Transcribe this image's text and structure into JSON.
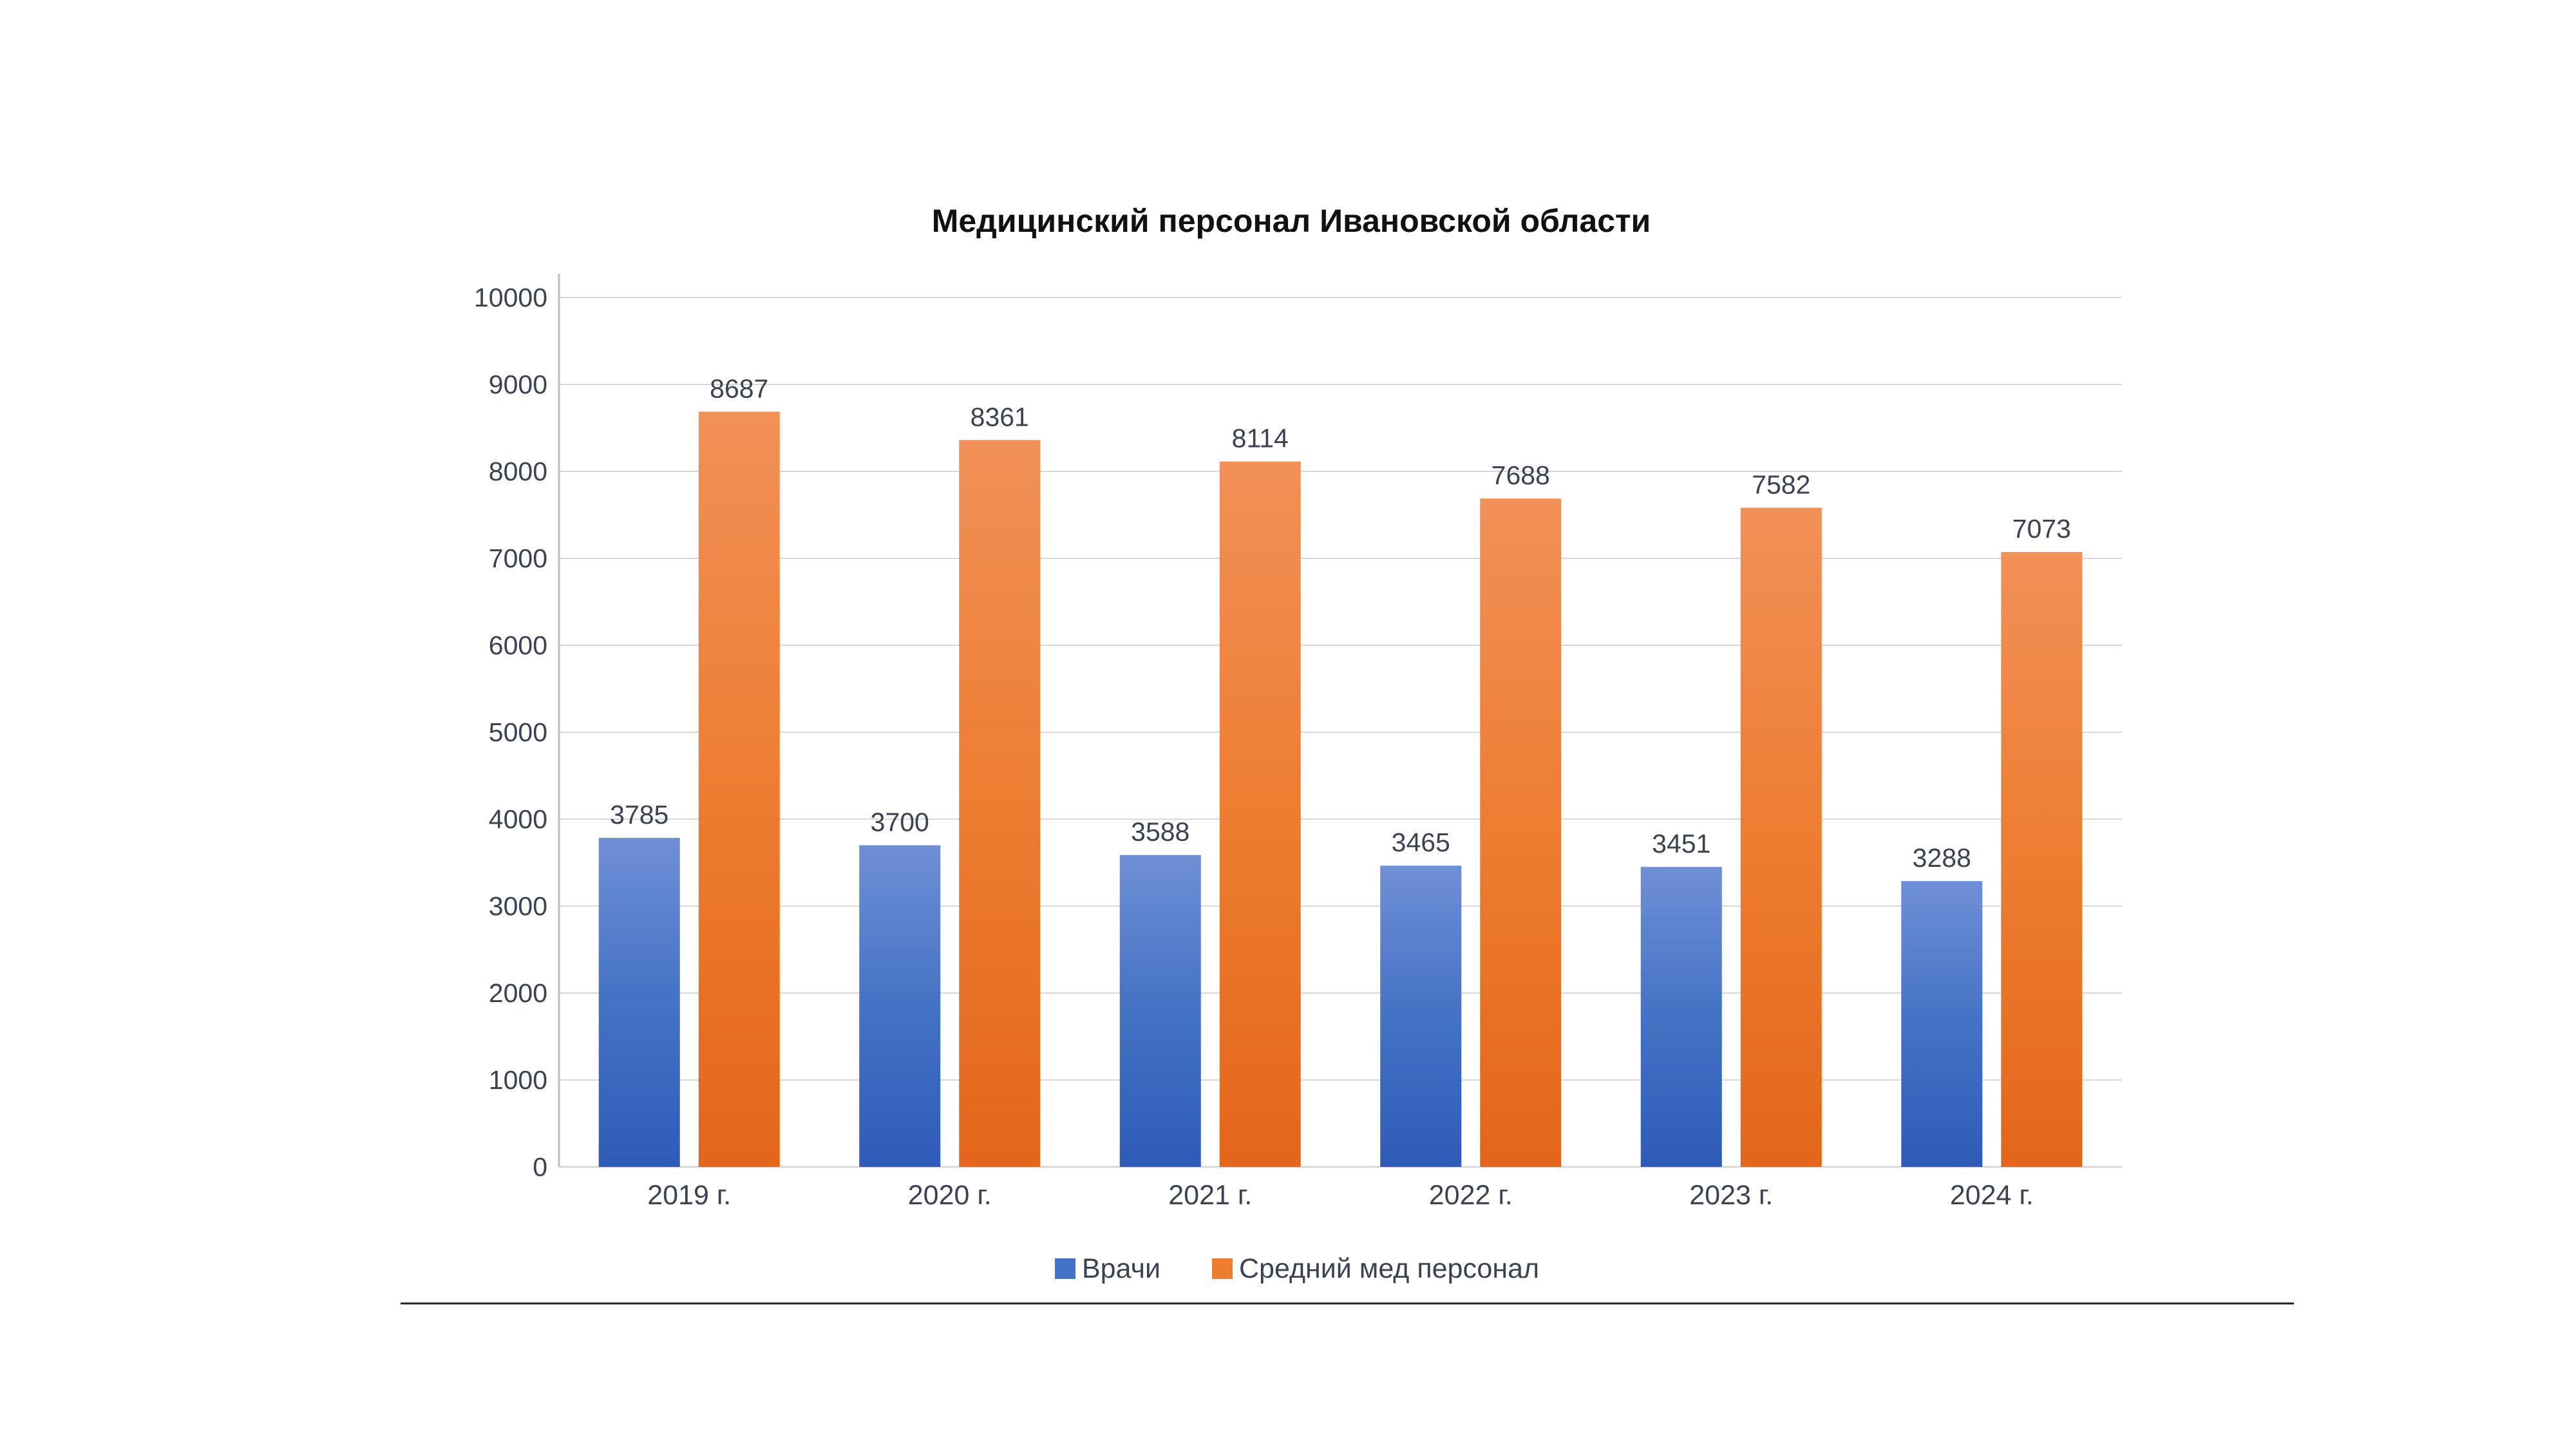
{
  "chart_data": {
    "type": "bar",
    "title": "Медицинский персонал Ивановской области",
    "categories": [
      "2019 г.",
      "2020 г.",
      "2021 г.",
      "2022 г.",
      "2023 г.",
      "2024 г."
    ],
    "series": [
      {
        "name": "Врачи",
        "values": [
          3785,
          3700,
          3588,
          3465,
          3451,
          3288
        ],
        "color": "#4472c4"
      },
      {
        "name": "Средний мед персонал",
        "values": [
          8687,
          8361,
          8114,
          7688,
          7582,
          7073
        ],
        "color": "#ed7d31"
      }
    ],
    "yticks": [
      "0",
      "1000",
      "2000",
      "3000",
      "4000",
      "5000",
      "6000",
      "7000",
      "8000",
      "9000",
      "10000"
    ],
    "ylim": [
      0,
      10000
    ],
    "grid": true,
    "data_labels": true,
    "legend_position": "bottom"
  }
}
